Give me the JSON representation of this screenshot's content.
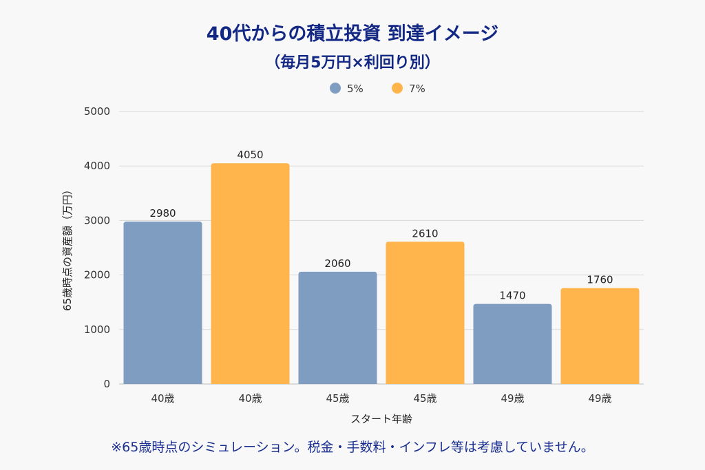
{
  "chart_data": {
    "type": "bar",
    "title": "40代からの積立投資 到達イメージ",
    "subtitle": "（毎月5万円×利回り別）",
    "xlabel": "スタート年齢",
    "ylabel": "65歳時点の資産額（万円）",
    "ylim": [
      0,
      5000
    ],
    "yticks": [
      "0",
      "1000",
      "2000",
      "3000",
      "4000",
      "5000"
    ],
    "grid": true,
    "legend_position": "top-center",
    "categories": [
      "40歳",
      "40歳",
      "45歳",
      "45歳",
      "49歳",
      "49歳"
    ],
    "bars": [
      {
        "category": "40歳",
        "series": "5%",
        "value": 2980
      },
      {
        "category": "40歳",
        "series": "7%",
        "value": 4050
      },
      {
        "category": "45歳",
        "series": "5%",
        "value": 2060
      },
      {
        "category": "45歳",
        "series": "7%",
        "value": 2610
      },
      {
        "category": "49歳",
        "series": "5%",
        "value": 1470
      },
      {
        "category": "49歳",
        "series": "7%",
        "value": 1760
      }
    ],
    "series": [
      {
        "name": "5%",
        "color": "#7f9cc1"
      },
      {
        "name": "7%",
        "color": "#ffb54c"
      }
    ]
  },
  "footnote": "※65歳時点のシミュレーション。税金・手数料・インフレ等は考慮していません。"
}
